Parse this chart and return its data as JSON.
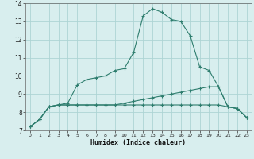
{
  "xlabel": "Humidex (Indice chaleur)",
  "x": [
    0,
    1,
    2,
    3,
    4,
    5,
    6,
    7,
    8,
    9,
    10,
    11,
    12,
    13,
    14,
    15,
    16,
    17,
    18,
    19,
    20,
    21,
    22,
    23
  ],
  "line1": [
    7.2,
    7.6,
    8.3,
    8.4,
    8.5,
    9.5,
    9.8,
    9.9,
    10.0,
    10.3,
    10.4,
    11.3,
    13.3,
    13.7,
    13.5,
    13.1,
    13.0,
    12.2,
    10.5,
    10.3,
    9.4,
    8.3,
    8.2,
    7.7
  ],
  "line2": [
    7.2,
    7.6,
    8.3,
    8.4,
    8.4,
    8.4,
    8.4,
    8.4,
    8.4,
    8.4,
    8.5,
    8.6,
    8.7,
    8.8,
    8.9,
    9.0,
    9.1,
    9.2,
    9.3,
    9.4,
    9.4,
    8.3,
    8.2,
    7.7
  ],
  "line3": [
    7.2,
    7.6,
    8.3,
    8.4,
    8.4,
    8.4,
    8.4,
    8.4,
    8.4,
    8.4,
    8.4,
    8.4,
    8.4,
    8.4,
    8.4,
    8.4,
    8.4,
    8.4,
    8.4,
    8.4,
    8.4,
    8.3,
    8.2,
    7.7
  ],
  "line_color": "#2e7d6e",
  "bg_color": "#d8eeee",
  "grid_color": "#aed4d4",
  "ylim": [
    7,
    14
  ],
  "xlim": [
    -0.5,
    23.5
  ],
  "yticks": [
    7,
    8,
    9,
    10,
    11,
    12,
    13,
    14
  ],
  "xticks": [
    0,
    1,
    2,
    3,
    4,
    5,
    6,
    7,
    8,
    9,
    10,
    11,
    12,
    13,
    14,
    15,
    16,
    17,
    18,
    19,
    20,
    21,
    22,
    23
  ]
}
